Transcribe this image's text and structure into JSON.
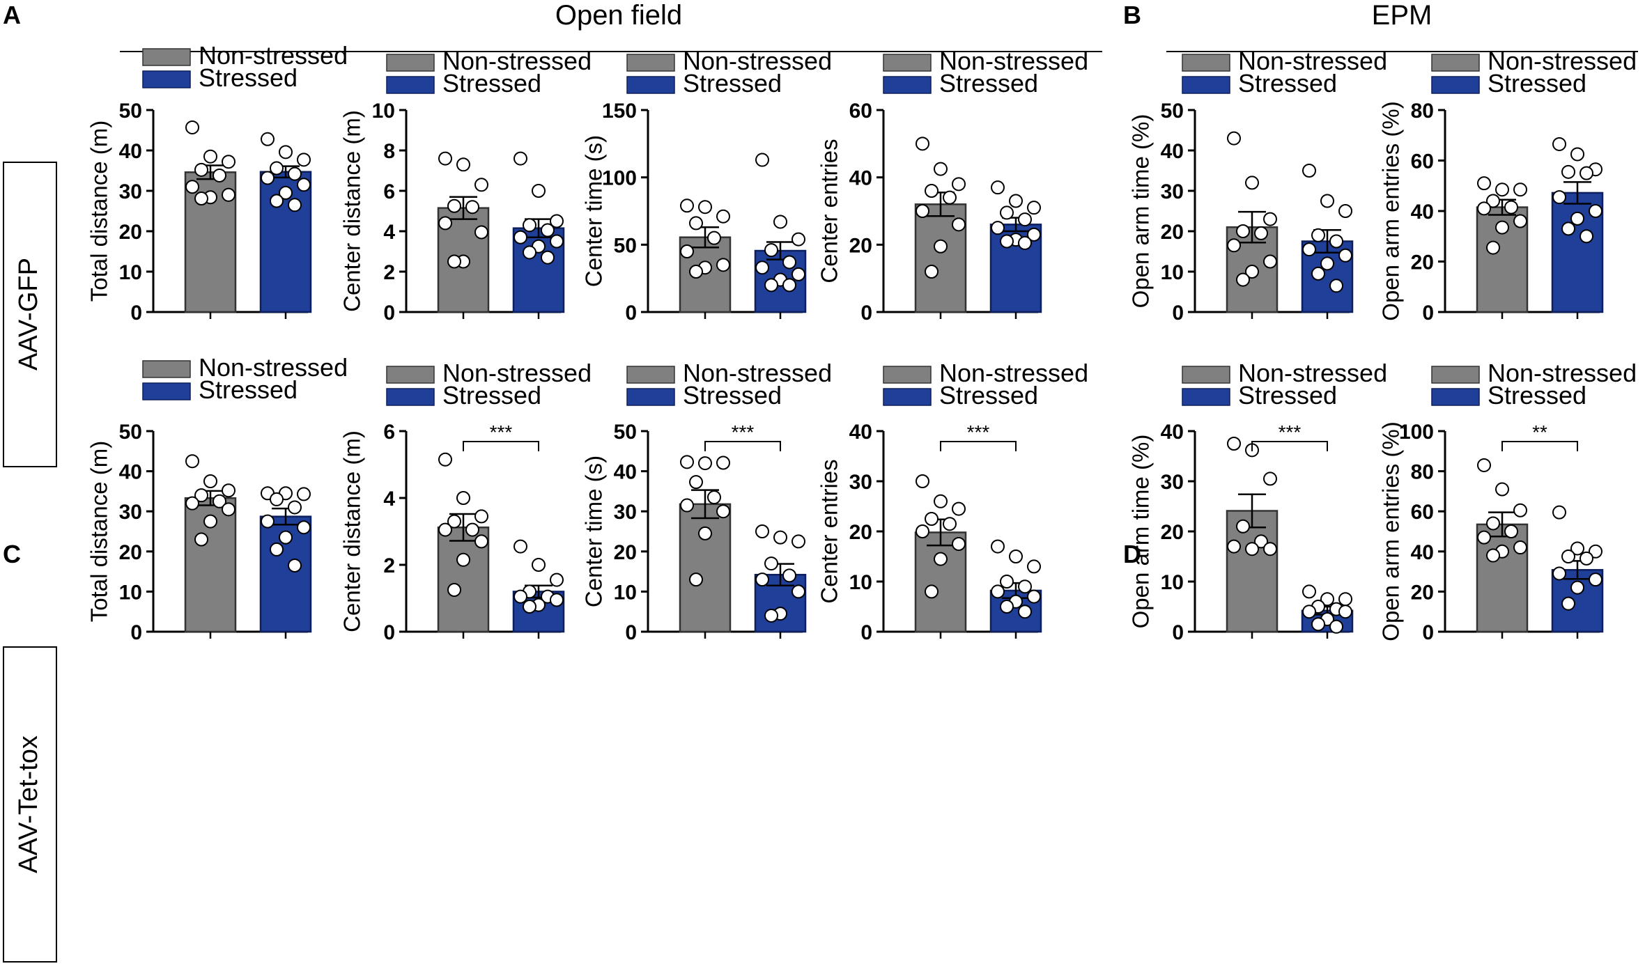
{
  "headers": {
    "open_field": "Open field",
    "epm": "EPM",
    "panel_a": "A",
    "panel_b": "B",
    "panel_c": "C",
    "panel_d": "D",
    "row1": "AAV-GFP",
    "row2": "AAV-Tet-tox"
  },
  "legend": {
    "non_stressed": "Non-stressed",
    "stressed": "Stressed"
  },
  "colors": {
    "non_stressed": "#808080",
    "stressed": "#1f3f99"
  },
  "chart_data": [
    {
      "type": "bar",
      "row": 1,
      "ylabel": "Total distance (m)",
      "ylim": [
        0,
        50
      ],
      "yticks": [
        0,
        10,
        20,
        30,
        40,
        50
      ],
      "categories": [
        "Non-stressed",
        "Stressed"
      ],
      "values": [
        34.6,
        34.7
      ],
      "sem": [
        1.7,
        1.4
      ],
      "points": [
        [
          45.7,
          38.5,
          37.2,
          35.2,
          33.8,
          31,
          29,
          28.4,
          28.1
        ],
        [
          42.8,
          39.6,
          37.7,
          35.6,
          34.2,
          33.2,
          31.5,
          29.5,
          27.5,
          26.5
        ]
      ],
      "significance": ""
    },
    {
      "type": "bar",
      "row": 1,
      "ylabel": "Center distance (m)",
      "ylim": [
        0,
        10
      ],
      "yticks": [
        0,
        2,
        4,
        6,
        8,
        10
      ],
      "categories": [
        "Non-stressed",
        "Stressed"
      ],
      "values": [
        5.15,
        4.15
      ],
      "sem": [
        0.55,
        0.45
      ],
      "points": [
        [
          7.6,
          7.3,
          6.3,
          5.25,
          5.2,
          4.4,
          3.95,
          2.5,
          2.5
        ],
        [
          7.6,
          6.0,
          4.5,
          4.3,
          4.05,
          3.7,
          3.5,
          3.25,
          2.95,
          2.7
        ]
      ],
      "significance": ""
    },
    {
      "type": "bar",
      "row": 1,
      "ylabel": "Center time (s)",
      "ylim": [
        0,
        150
      ],
      "yticks": [
        0,
        50,
        100,
        150
      ],
      "categories": [
        "Non-stressed",
        "Stressed"
      ],
      "values": [
        55.5,
        45.5
      ],
      "sem": [
        7.5,
        6.5
      ],
      "points": [
        [
          79,
          78,
          71,
          66,
          55,
          45,
          35,
          33,
          30
        ],
        [
          113,
          67,
          54,
          46,
          37,
          33,
          28,
          24,
          20,
          20
        ]
      ],
      "significance": ""
    },
    {
      "type": "bar",
      "row": 1,
      "ylabel": "Center entries",
      "ylim": [
        0,
        60
      ],
      "yticks": [
        0,
        20,
        40,
        60
      ],
      "categories": [
        "Non-stressed",
        "Stressed"
      ],
      "values": [
        32,
        26
      ],
      "sem": [
        3.5,
        2.0
      ],
      "points": [
        [
          50,
          42.5,
          38,
          36,
          34,
          30,
          26,
          19.5,
          12
        ],
        [
          37,
          33,
          31,
          29.5,
          27.5,
          25,
          23,
          21.5,
          21,
          20.5
        ]
      ],
      "significance": ""
    },
    {
      "type": "bar",
      "row": 1,
      "ylabel": "Open arm time (%)",
      "ylim": [
        0,
        50
      ],
      "yticks": [
        0,
        10,
        20,
        30,
        40,
        50
      ],
      "categories": [
        "Non-stressed",
        "Stressed"
      ],
      "values": [
        21,
        17.5
      ],
      "sem": [
        3.8,
        2.8
      ],
      "points": [
        [
          43,
          32,
          23,
          20,
          19.5,
          16.5,
          12.5,
          10,
          8
        ],
        [
          35,
          27.5,
          25,
          19,
          17.5,
          15.5,
          14,
          12,
          9.5,
          6.5
        ]
      ],
      "significance": ""
    },
    {
      "type": "bar",
      "row": 1,
      "ylabel": "Open arm entries (%)",
      "ylim": [
        0,
        80
      ],
      "yticks": [
        0,
        20,
        40,
        60,
        80
      ],
      "categories": [
        "Non-stressed",
        "Stressed"
      ],
      "values": [
        41.5,
        47.2
      ],
      "sem": [
        3.0,
        4.3
      ],
      "points": [
        [
          51,
          48.5,
          48.5,
          44,
          41.5,
          41,
          36,
          33.5,
          25.5
        ],
        [
          66.5,
          62.5,
          56.5,
          55.5,
          55,
          45.5,
          40,
          37,
          33,
          30
        ]
      ],
      "significance": ""
    },
    {
      "type": "bar",
      "row": 2,
      "ylabel": "Total distance (m)",
      "ylim": [
        0,
        50
      ],
      "yticks": [
        0,
        10,
        20,
        30,
        40,
        50
      ],
      "categories": [
        "Non-stressed",
        "Stressed"
      ],
      "values": [
        33.3,
        28.7
      ],
      "sem": [
        1.8,
        2.0
      ],
      "points": [
        [
          42.5,
          37.5,
          35.2,
          34,
          32.5,
          32,
          30.5,
          27.5,
          23
        ],
        [
          34.5,
          34.5,
          34.3,
          33,
          31,
          27.5,
          26,
          23.5,
          20.5,
          16.5
        ]
      ],
      "significance": ""
    },
    {
      "type": "bar",
      "row": 2,
      "ylabel": "Center distance (m)",
      "ylim": [
        0,
        6
      ],
      "yticks": [
        0,
        2,
        4,
        6
      ],
      "categories": [
        "Non-stressed",
        "Stressed"
      ],
      "values": [
        3.12,
        1.2
      ],
      "sem": [
        0.4,
        0.18
      ],
      "points": [
        [
          5.15,
          4.0,
          3.45,
          3.3,
          3.05,
          3.05,
          2.7,
          2.15,
          1.25
        ],
        [
          2.55,
          2.0,
          1.55,
          1.2,
          1.05,
          1.05,
          0.95,
          0.8,
          0.75
        ]
      ],
      "significance": "***"
    },
    {
      "type": "bar",
      "row": 2,
      "ylabel": "Center time (s)",
      "ylim": [
        0,
        50
      ],
      "yticks": [
        0,
        10,
        20,
        30,
        40,
        50
      ],
      "categories": [
        "Non-stressed",
        "Stressed"
      ],
      "values": [
        31.8,
        14.2
      ],
      "sem": [
        3.5,
        2.7
      ],
      "points": [
        [
          42.3,
          42,
          42.1,
          37.3,
          33.5,
          31.5,
          30,
          24.5,
          13
        ],
        [
          25,
          23.5,
          22.5,
          17,
          14,
          13,
          10,
          4.5,
          4
        ]
      ],
      "significance": "***"
    },
    {
      "type": "bar",
      "row": 2,
      "ylabel": "Center entries",
      "ylim": [
        0,
        40
      ],
      "yticks": [
        0,
        10,
        20,
        30,
        40
      ],
      "categories": [
        "Non-stressed",
        "Stressed"
      ],
      "values": [
        19.8,
        8.2
      ],
      "sem": [
        2.6,
        1.5
      ],
      "points": [
        [
          30,
          26,
          24.5,
          22.5,
          21.5,
          20,
          17.5,
          14.5,
          8
        ],
        [
          17,
          15,
          13,
          10,
          9,
          8,
          7,
          6,
          5,
          4
        ]
      ],
      "significance": "***"
    },
    {
      "type": "bar",
      "row": 2,
      "ylabel": "Open arm time (%)",
      "ylim": [
        0,
        40
      ],
      "yticks": [
        0,
        10,
        20,
        30,
        40
      ],
      "categories": [
        "Non-stressed",
        "Stressed"
      ],
      "values": [
        24.1,
        4.2
      ],
      "sem": [
        3.3,
        0.8
      ],
      "points": [
        [
          37.5,
          36.2,
          30.5,
          21,
          18,
          17,
          16.5,
          16.5
        ],
        [
          8,
          6.5,
          6.5,
          5,
          4.5,
          4,
          4,
          2.5,
          1.5,
          1
        ]
      ],
      "significance": "***"
    },
    {
      "type": "bar",
      "row": 2,
      "ylabel": "Open arm entries (%)",
      "ylim": [
        0,
        100
      ],
      "yticks": [
        0,
        20,
        40,
        60,
        80,
        100
      ],
      "categories": [
        "Non-stressed",
        "Stressed"
      ],
      "values": [
        53.5,
        30.8
      ],
      "sem": [
        6.0,
        4.5
      ],
      "points": [
        [
          83,
          71,
          60.5,
          54,
          50,
          47,
          42,
          40,
          38
        ],
        [
          59.5,
          41.5,
          40,
          37.5,
          36.5,
          29,
          26,
          22,
          14
        ]
      ],
      "significance": "**"
    }
  ]
}
